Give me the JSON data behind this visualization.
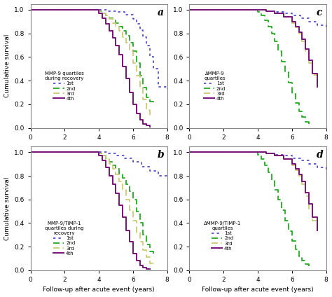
{
  "figure_bg": "#ffffff",
  "axes_bg": "#ffffff",
  "xlim": [
    0,
    8
  ],
  "ylim": [
    0.0,
    1.05
  ],
  "xticks": [
    0,
    2,
    4,
    6,
    8
  ],
  "yticks": [
    0.0,
    0.2,
    0.4,
    0.6,
    0.8,
    1.0
  ],
  "xlabel": "Follow-up after acute event (years)",
  "ylabel": "Cumulative survival",
  "legend_labels": [
    "1st",
    "2nd",
    "3rd",
    "4th"
  ],
  "colors": [
    "#4444cc",
    "#22aa22",
    "#cccc77",
    "#771177"
  ],
  "panel_a": {
    "title": "MMP-9 quartiles\nduring recovery",
    "q1": {
      "x": [
        0,
        4.0,
        4.5,
        5.0,
        5.5,
        6.0,
        6.2,
        6.4,
        6.6,
        6.8,
        7.0,
        7.2,
        7.5,
        8.0
      ],
      "y": [
        1.0,
        1.0,
        0.99,
        0.98,
        0.96,
        0.92,
        0.88,
        0.83,
        0.77,
        0.7,
        0.6,
        0.5,
        0.35,
        0.33
      ]
    },
    "q2": {
      "x": [
        0,
        4.0,
        4.2,
        4.4,
        4.6,
        4.8,
        5.0,
        5.2,
        5.4,
        5.6,
        5.8,
        6.0,
        6.2,
        6.4,
        6.6,
        6.8,
        7.0,
        7.2
      ],
      "y": [
        1.0,
        0.99,
        0.97,
        0.95,
        0.93,
        0.91,
        0.89,
        0.86,
        0.82,
        0.78,
        0.72,
        0.65,
        0.55,
        0.44,
        0.34,
        0.26,
        0.22,
        0.21
      ]
    },
    "q3": {
      "x": [
        0,
        4.0,
        4.2,
        4.4,
        4.6,
        4.8,
        5.0,
        5.2,
        5.4,
        5.6,
        5.8,
        6.0,
        6.2,
        6.4,
        6.6,
        6.8,
        7.0
      ],
      "y": [
        1.0,
        0.99,
        0.97,
        0.95,
        0.92,
        0.89,
        0.86,
        0.82,
        0.77,
        0.72,
        0.65,
        0.55,
        0.44,
        0.34,
        0.24,
        0.15,
        0.08
      ]
    },
    "q4": {
      "x": [
        0,
        3.8,
        4.0,
        4.2,
        4.4,
        4.6,
        4.8,
        5.0,
        5.2,
        5.4,
        5.6,
        5.8,
        6.0,
        6.2,
        6.4,
        6.6,
        6.8,
        7.0
      ],
      "y": [
        1.0,
        1.0,
        0.97,
        0.93,
        0.88,
        0.82,
        0.76,
        0.7,
        0.62,
        0.52,
        0.42,
        0.3,
        0.2,
        0.12,
        0.07,
        0.03,
        0.02,
        0.01
      ]
    }
  },
  "panel_b": {
    "title": "MMP-9/TIMP-1\nquartiles during\nrecovery",
    "q1": {
      "x": [
        0,
        4.0,
        4.5,
        5.0,
        5.5,
        6.0,
        6.5,
        7.0,
        7.5,
        8.0
      ],
      "y": [
        1.0,
        1.0,
        0.99,
        0.97,
        0.95,
        0.92,
        0.88,
        0.84,
        0.8,
        0.78
      ]
    },
    "q2": {
      "x": [
        0,
        4.0,
        4.2,
        4.4,
        4.6,
        4.8,
        5.0,
        5.2,
        5.4,
        5.6,
        5.8,
        6.0,
        6.2,
        6.4,
        6.6,
        6.8,
        7.0,
        7.2
      ],
      "y": [
        1.0,
        0.99,
        0.97,
        0.95,
        0.92,
        0.89,
        0.86,
        0.82,
        0.78,
        0.73,
        0.67,
        0.6,
        0.5,
        0.4,
        0.3,
        0.22,
        0.16,
        0.14
      ]
    },
    "q3": {
      "x": [
        0,
        4.0,
        4.2,
        4.4,
        4.6,
        4.8,
        5.0,
        5.2,
        5.4,
        5.6,
        5.8,
        6.0,
        6.2,
        6.4,
        6.6,
        6.8,
        7.0,
        7.2
      ],
      "y": [
        1.0,
        0.99,
        0.97,
        0.94,
        0.9,
        0.86,
        0.81,
        0.75,
        0.68,
        0.6,
        0.51,
        0.42,
        0.32,
        0.24,
        0.17,
        0.11,
        0.06,
        0.04
      ]
    },
    "q4": {
      "x": [
        0,
        3.8,
        4.0,
        4.2,
        4.4,
        4.6,
        4.8,
        5.0,
        5.2,
        5.4,
        5.6,
        5.8,
        6.0,
        6.2,
        6.4,
        6.6,
        6.8,
        7.0
      ],
      "y": [
        1.0,
        1.0,
        0.97,
        0.93,
        0.87,
        0.8,
        0.73,
        0.65,
        0.55,
        0.45,
        0.34,
        0.24,
        0.14,
        0.08,
        0.04,
        0.02,
        0.01,
        0.01
      ]
    }
  },
  "panel_c": {
    "title": "ΔMMP-9\nquartiles",
    "q1": {
      "x": [
        0,
        4.0,
        4.5,
        5.0,
        5.5,
        6.0,
        6.5,
        7.0,
        7.5,
        8.0
      ],
      "y": [
        1.0,
        1.0,
        0.99,
        0.98,
        0.97,
        0.95,
        0.93,
        0.9,
        0.87,
        0.85
      ]
    },
    "q2": {
      "x": [
        0,
        4.0,
        4.2,
        4.4,
        4.6,
        4.8,
        5.0,
        5.2,
        5.4,
        5.6,
        5.8,
        6.0,
        6.2,
        6.4,
        6.6,
        6.8,
        7.0
      ],
      "y": [
        1.0,
        0.98,
        0.95,
        0.91,
        0.86,
        0.8,
        0.73,
        0.65,
        0.56,
        0.47,
        0.38,
        0.29,
        0.21,
        0.14,
        0.09,
        0.05,
        0.03
      ]
    },
    "q3": {
      "x": [
        0,
        4.0,
        4.5,
        5.0,
        5.5,
        6.0,
        6.2,
        6.4,
        6.6,
        6.8,
        7.0,
        7.2,
        7.5
      ],
      "y": [
        1.0,
        1.0,
        0.99,
        0.97,
        0.94,
        0.89,
        0.85,
        0.8,
        0.73,
        0.64,
        0.55,
        0.45,
        0.35
      ]
    },
    "q4": {
      "x": [
        0,
        4.0,
        4.5,
        5.0,
        5.5,
        6.0,
        6.2,
        6.4,
        6.6,
        6.8,
        7.0,
        7.2,
        7.5
      ],
      "y": [
        1.0,
        1.0,
        0.99,
        0.97,
        0.94,
        0.9,
        0.86,
        0.81,
        0.75,
        0.67,
        0.57,
        0.46,
        0.35
      ]
    }
  },
  "panel_d": {
    "title": "ΔMMP-9/TIMP-1\nquartiles",
    "q1": {
      "x": [
        0,
        4.0,
        4.5,
        5.0,
        5.5,
        6.0,
        6.5,
        7.0,
        7.5,
        8.0
      ],
      "y": [
        1.0,
        1.0,
        0.99,
        0.98,
        0.97,
        0.95,
        0.93,
        0.9,
        0.87,
        0.85
      ]
    },
    "q2": {
      "x": [
        0,
        4.0,
        4.2,
        4.4,
        4.6,
        4.8,
        5.0,
        5.2,
        5.4,
        5.6,
        5.8,
        6.0,
        6.2,
        6.4,
        6.6,
        6.8,
        7.0
      ],
      "y": [
        1.0,
        0.98,
        0.94,
        0.89,
        0.83,
        0.76,
        0.68,
        0.6,
        0.51,
        0.42,
        0.33,
        0.25,
        0.18,
        0.12,
        0.08,
        0.05,
        0.03
      ]
    },
    "q3": {
      "x": [
        0,
        4.0,
        4.5,
        5.0,
        5.5,
        6.0,
        6.2,
        6.4,
        6.6,
        6.8,
        7.0,
        7.2,
        7.5
      ],
      "y": [
        1.0,
        1.0,
        0.99,
        0.97,
        0.94,
        0.89,
        0.85,
        0.8,
        0.73,
        0.63,
        0.52,
        0.42,
        0.32
      ]
    },
    "q4": {
      "x": [
        0,
        4.0,
        4.5,
        5.0,
        5.5,
        6.0,
        6.2,
        6.4,
        6.6,
        6.8,
        7.0,
        7.2,
        7.5
      ],
      "y": [
        1.0,
        1.0,
        0.99,
        0.97,
        0.94,
        0.9,
        0.86,
        0.81,
        0.75,
        0.66,
        0.56,
        0.45,
        0.34
      ]
    }
  }
}
